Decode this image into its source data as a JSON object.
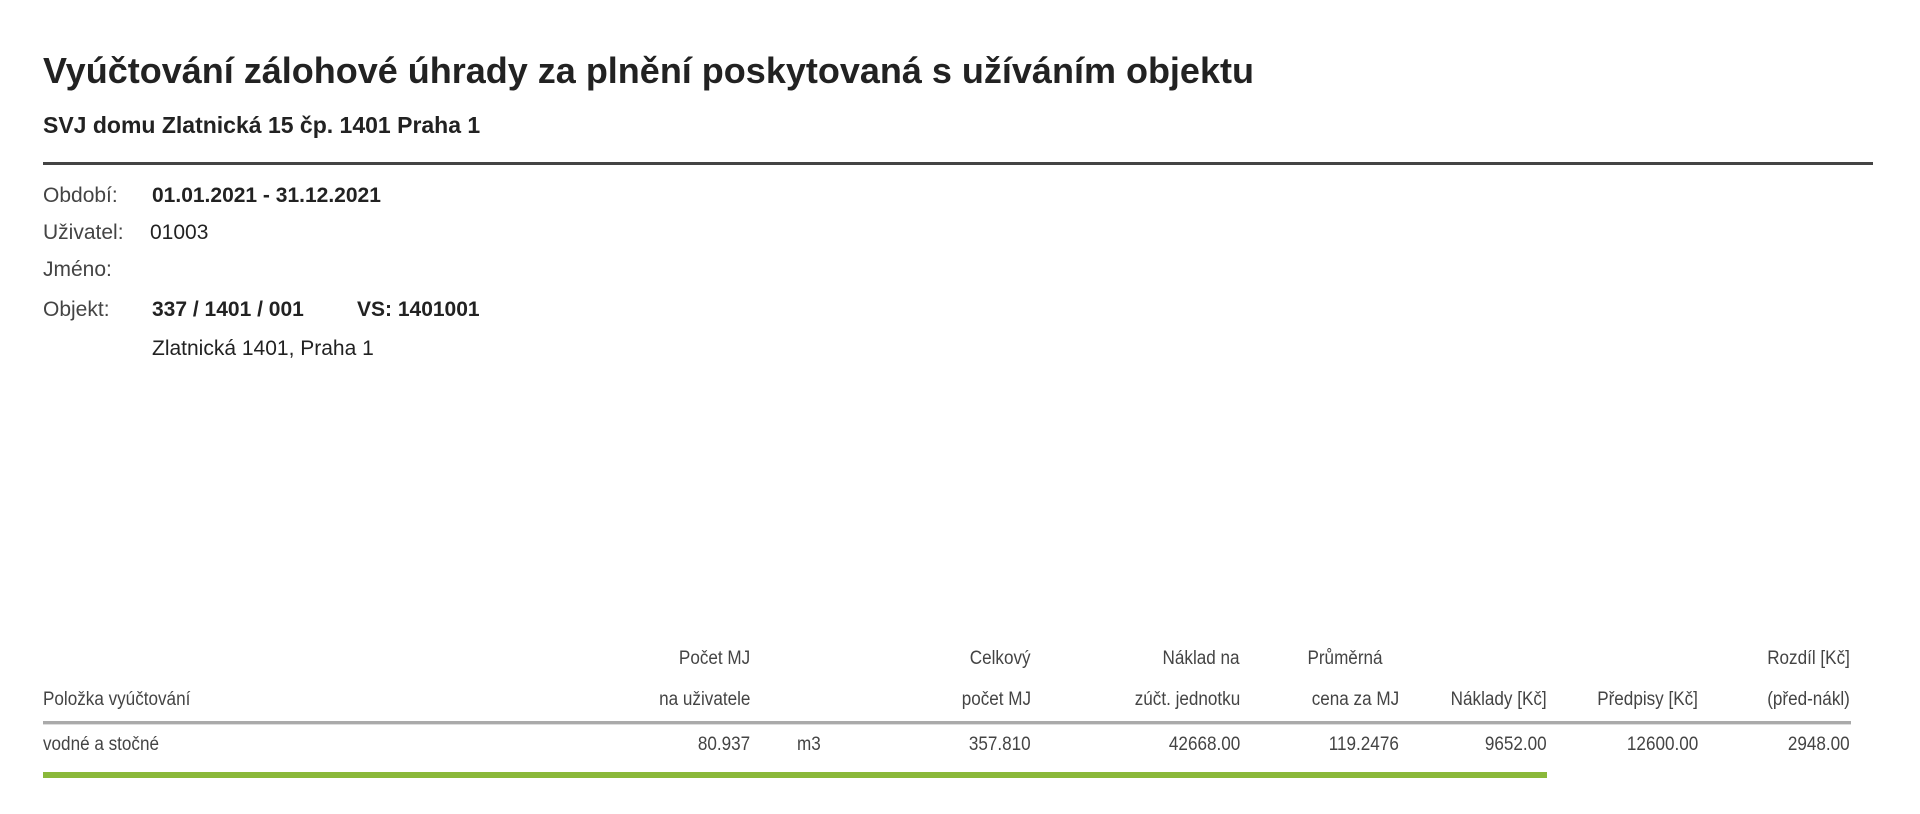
{
  "header": {
    "title": "Vyúčtování zálohové úhrady za plnění poskytovaná s užíváním objektu",
    "subtitle": "SVJ domu Zlatnická 15 čp. 1401 Praha 1"
  },
  "info": {
    "period_label": "Období:",
    "period_value": "01.01.2021 - 31.12.2021",
    "user_label": "Uživatel:",
    "user_value": "01003",
    "name_label": "Jméno:",
    "object_label": "Objekt:",
    "object_value": "337 / 1401 / 001",
    "vs": "VS: 1401001",
    "address": "Zlatnická 1401, Praha 1"
  },
  "table": {
    "headers": {
      "item": "Položka vyúčtování",
      "units_user_1": "Počet MJ",
      "units_user_2": "na uživatele",
      "total_units_1": "Celkový",
      "total_units_2": "počet MJ",
      "cost_per_unit_1": "Náklad na",
      "cost_per_unit_2": "zúčt. jednotku",
      "avg_price_1": "Průměrná",
      "avg_price_2": "cena za MJ",
      "costs": "Náklady [Kč]",
      "prescribed": "Předpisy [Kč]",
      "diff_1": "Rozdíl [Kč]",
      "diff_2": "(před-nákl)"
    },
    "rows": [
      {
        "item": "vodné a stočné",
        "units_user": "80.937",
        "unit": "m3",
        "total_units": "357.810",
        "cost_per_unit": "42668.00",
        "avg_price": "119.2476",
        "costs": "9652.00",
        "prescribed": "12600.00",
        "diff": "2948.00"
      }
    ],
    "accent_color": "#8ab83a"
  }
}
